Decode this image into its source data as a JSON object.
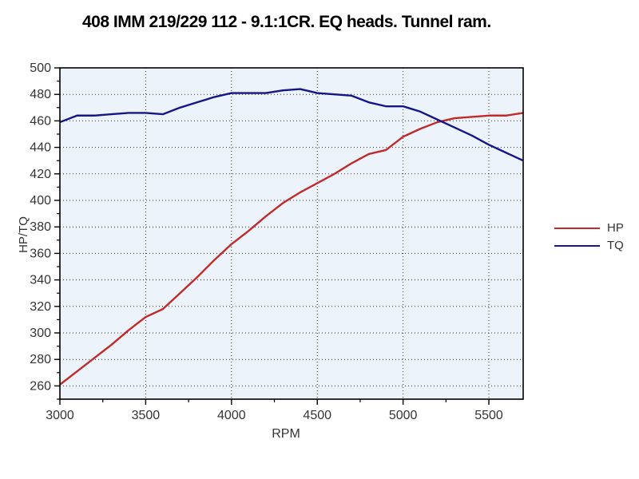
{
  "title": "408 IMM 219/229 112 - 9.1:1CR. EQ heads. Tunnel ram.",
  "chart_data": {
    "type": "line",
    "title": "408 IMM 219/229 112 - 9.1:1CR. EQ heads. Tunnel ram.",
    "xlabel": "RPM",
    "ylabel": "HP/TQ",
    "xlim": [
      3000,
      5700
    ],
    "ylim": [
      250,
      500
    ],
    "x_major_ticks": [
      3000,
      3500,
      4000,
      4500,
      5000,
      5500
    ],
    "x_minor_step": 250,
    "y_major_ticks": [
      260,
      280,
      300,
      320,
      340,
      360,
      380,
      400,
      420,
      440,
      460,
      480,
      500
    ],
    "y_minor_step": 10,
    "grid": "dotted-at-major-ticks",
    "legend_position": "right-center",
    "plot_bg": "#edf3fa",
    "axis_color": "#000000",
    "grid_color": "#333333",
    "x": [
      3000,
      3100,
      3200,
      3300,
      3400,
      3500,
      3600,
      3700,
      3800,
      3900,
      4000,
      4100,
      4200,
      4300,
      4400,
      4500,
      4600,
      4700,
      4800,
      4900,
      5000,
      5100,
      5200,
      5300,
      5400,
      5500,
      5600,
      5700
    ],
    "series": [
      {
        "name": "HP",
        "color": "#c12a2a",
        "values": [
          261,
          271,
          281,
          291,
          302,
          312,
          318,
          330,
          342,
          355,
          367,
          377,
          388,
          398,
          406,
          413,
          420,
          428,
          435,
          438,
          448,
          454,
          459,
          462,
          463,
          464,
          464,
          466
        ]
      },
      {
        "name": "TQ",
        "color": "#15158a",
        "values": [
          459,
          464,
          464,
          465,
          466,
          466,
          465,
          470,
          474,
          478,
          481,
          481,
          481,
          483,
          484,
          481,
          480,
          479,
          474,
          471,
          471,
          467,
          461,
          455,
          449,
          442,
          436,
          430
        ]
      }
    ]
  },
  "legend": {
    "items": [
      {
        "label": "HP",
        "color": "#c12a2a"
      },
      {
        "label": "TQ",
        "color": "#15158a"
      }
    ]
  }
}
